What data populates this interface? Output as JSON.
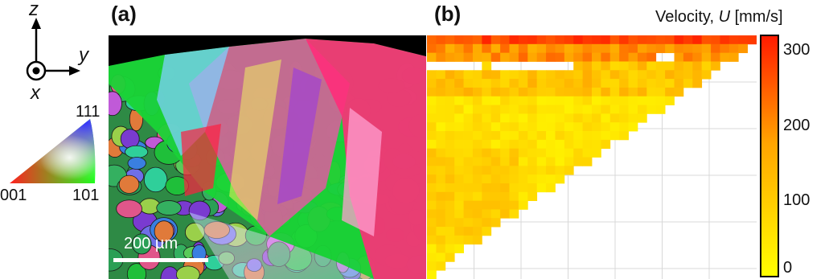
{
  "coordinate_axes": {
    "z_label": "z",
    "y_label": "y",
    "x_label": "x"
  },
  "ipf_legend": {
    "top_label": "111",
    "left_label": "001",
    "right_label": "101"
  },
  "panel_a": {
    "label": "(a)",
    "scale_bar_label": "200 µm"
  },
  "panel_b": {
    "label": "(b)"
  },
  "colorbar": {
    "title_prefix": "Velocity, ",
    "title_symbol": "U",
    "title_units": " [mm/s]",
    "ticks": [
      {
        "value": 300,
        "label": "300"
      },
      {
        "value": 200,
        "label": "200"
      },
      {
        "value": 100,
        "label": "100"
      },
      {
        "value": 0,
        "label": "0"
      }
    ],
    "range": [
      0,
      320
    ],
    "colors": {
      "low": "#ffff00",
      "mid": "#ffa500",
      "high": "#ff1a00"
    }
  },
  "chart_data": {
    "type": "heatmap",
    "title": "",
    "xlabel": "",
    "ylabel": "",
    "colorbar_label": "Velocity, U [mm/s]",
    "value_range": [
      0,
      320
    ],
    "rows": 28,
    "cols": 36,
    "grid": true
  }
}
